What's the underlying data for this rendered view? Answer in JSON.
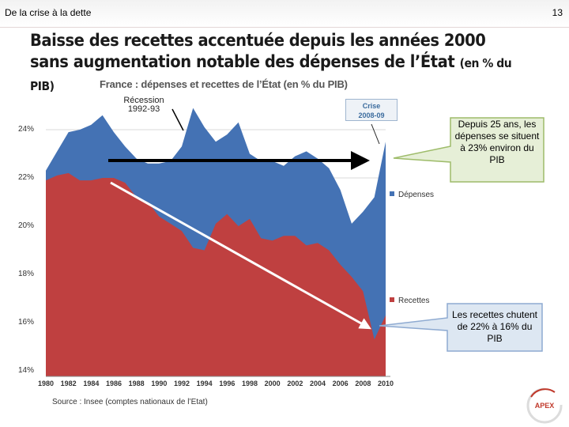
{
  "header": {
    "section": "De la crise à la dette",
    "page_number": "13"
  },
  "slide": {
    "title_line1": "Baisse des recettes accentuée depuis les années 2000",
    "title_line2": "sans augmentation notable des dépenses de l’État",
    "title_suffix": "(en % du PIB)"
  },
  "chart_data": {
    "type": "area",
    "title": "France : dépenses et recettes de l’État (en % du PIB)",
    "x": [
      1980,
      1981,
      1982,
      1983,
      1984,
      1985,
      1986,
      1987,
      1988,
      1989,
      1990,
      1991,
      1992,
      1993,
      1994,
      1995,
      1996,
      1997,
      1998,
      1999,
      2000,
      2001,
      2002,
      2003,
      2004,
      2005,
      2006,
      2007,
      2008,
      2009,
      2010
    ],
    "series": [
      {
        "name": "Dépenses",
        "color": "#4472b4",
        "values": [
          22.3,
          23.1,
          23.9,
          24.0,
          24.2,
          24.6,
          23.9,
          23.3,
          22.8,
          22.6,
          22.6,
          22.7,
          23.3,
          24.9,
          24.1,
          23.5,
          23.8,
          24.3,
          23.0,
          22.7,
          22.7,
          22.5,
          22.9,
          23.1,
          22.8,
          22.4,
          21.5,
          20.1,
          20.6,
          21.2,
          23.5
        ]
      },
      {
        "name": "Recettes",
        "color": "#bf4040",
        "values": [
          21.9,
          22.1,
          22.2,
          21.9,
          21.9,
          22.0,
          22.0,
          21.8,
          21.2,
          21.0,
          20.4,
          20.1,
          19.8,
          19.1,
          19.0,
          20.1,
          20.5,
          20.0,
          20.3,
          19.5,
          19.4,
          19.6,
          19.6,
          19.2,
          19.3,
          19.0,
          18.4,
          17.9,
          17.3,
          15.3,
          16.3
        ]
      }
    ],
    "xticks": [
      "1980",
      "1982",
      "1984",
      "1986",
      "1988",
      "1990",
      "1992",
      "1994",
      "1996",
      "1998",
      "2000",
      "2002",
      "2004",
      "2006",
      "2008",
      "2010"
    ],
    "yticks": [
      "24%",
      "22%",
      "20%",
      "18%",
      "16%",
      "14%"
    ],
    "ylim": [
      14,
      24.9
    ],
    "legend": [
      "Dépenses",
      "Recettes"
    ],
    "annotations": {
      "recession": "Récession 1992-93",
      "crise_line1": "Crise",
      "crise_line2": "2008-09",
      "depenses_note": "Depuis 25 ans, les dépenses se situent à 23% environ du PIB",
      "recettes_note": "Les recettes chutent de 22% à 16% du PIB"
    },
    "source": "Source : Insee (comptes nationaux de l’Etat)"
  },
  "logo": {
    "text": "APEX"
  }
}
